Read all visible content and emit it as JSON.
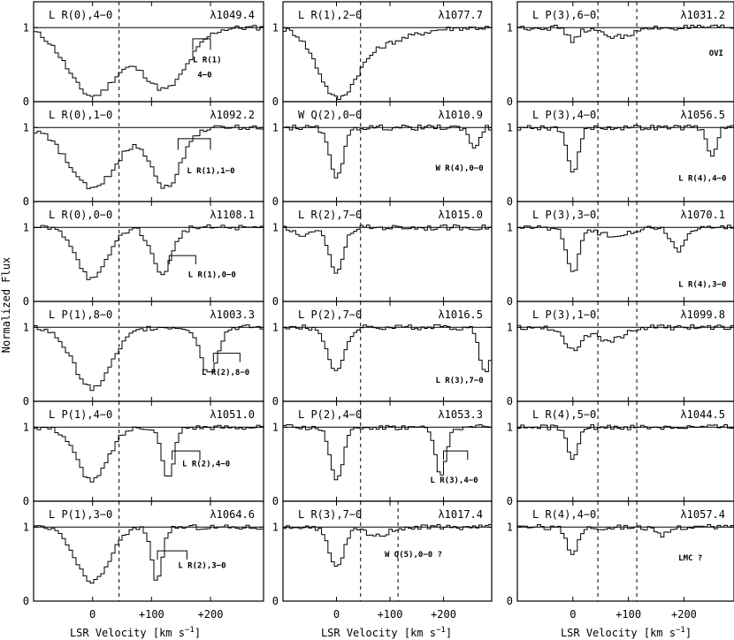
{
  "figure": {
    "ylabel": "Normalized Flux",
    "xlabel_main": "LSR Velocity [km s",
    "xlabel_sup": "−1",
    "xlabel_end": "]",
    "xticks": [
      {
        "v": 0,
        "label": "0"
      },
      {
        "v": 100,
        "label": "+100"
      },
      {
        "v": 200,
        "label": "+200"
      }
    ],
    "yticks": [
      {
        "v": 0,
        "label": "0"
      },
      {
        "v": 1,
        "label": "1"
      }
    ]
  },
  "chart_data": {
    "type": "line",
    "xlim": [
      -100,
      290
    ],
    "ylim": [
      0,
      1.35
    ],
    "continuum": 1.0,
    "reference_velocity": [
      45,
      115
    ],
    "grid": false,
    "panels": [
      {
        "column": 1,
        "row": 1,
        "transition": "L  R(0),4−0",
        "wavelength": "λ1049.4",
        "components": [
          {
            "v": 0,
            "depth": 0.92,
            "width": 42
          },
          {
            "v": 123,
            "depth": 0.82,
            "width": 38
          }
        ],
        "ref_lines": [
          45
        ],
        "annotations": [
          {
            "text": "L  R(1)",
            "v": 170,
            "y": 0.53
          },
          {
            "text": "4−0",
            "v": 178,
            "y": 0.33
          }
        ],
        "marker": {
          "v1": 170,
          "v2": 200,
          "y": 0.85,
          "drop": 0.15
        }
      },
      {
        "column": 2,
        "row": 1,
        "transition": "L  R(1),2−0",
        "wavelength": "λ1077.7",
        "components": [
          {
            "v": 0,
            "depth": 0.84,
            "width": 35
          },
          {
            "v": 70,
            "depth": 0.22,
            "width": 60
          }
        ],
        "ref_lines": [
          45
        ],
        "annotations": [],
        "marker": null
      },
      {
        "column": 3,
        "row": 1,
        "transition": "L  P(3),6−0",
        "wavelength": "λ1031.2",
        "components": [
          {
            "v": 0,
            "depth": 0.18,
            "width": 9
          },
          {
            "v": 80,
            "depth": 0.12,
            "width": 30
          }
        ],
        "ref_lines": [
          45,
          115
        ],
        "annotations": [
          {
            "text": "OVI",
            "v": 245,
            "y": 0.62
          }
        ],
        "marker": null
      },
      {
        "column": 1,
        "row": 2,
        "transition": "L  R(0),1−0",
        "wavelength": "λ1092.2",
        "components": [
          {
            "v": 0,
            "depth": 0.82,
            "width": 40
          },
          {
            "v": 125,
            "depth": 0.8,
            "width": 25
          }
        ],
        "ref_lines": [
          45
        ],
        "annotations": [
          {
            "text": "L  R(1),1−0",
            "v": 160,
            "y": 0.38
          }
        ],
        "marker": {
          "v1": 145,
          "v2": 200,
          "y": 0.85,
          "drop": 0.15
        }
      },
      {
        "column": 2,
        "row": 2,
        "transition": "W  Q(2),0−0",
        "wavelength": "λ1010.9",
        "components": [
          {
            "v": 0,
            "depth": 0.65,
            "width": 13
          },
          {
            "v": 258,
            "depth": 0.3,
            "width": 8
          }
        ],
        "ref_lines": [
          45
        ],
        "annotations": [
          {
            "text": "W  R(4),0−0",
            "v": 185,
            "y": 0.42
          }
        ],
        "marker": null
      },
      {
        "column": 3,
        "row": 2,
        "transition": "L  P(3),4−0",
        "wavelength": "λ1056.5",
        "components": [
          {
            "v": 0,
            "depth": 0.6,
            "width": 10
          },
          {
            "v": 250,
            "depth": 0.4,
            "width": 8
          }
        ],
        "ref_lines": [
          45,
          115
        ],
        "annotations": [
          {
            "text": "L  R(4),4−0",
            "v": 190,
            "y": 0.28
          }
        ],
        "marker": null
      },
      {
        "column": 1,
        "row": 3,
        "transition": "L  R(0),0−0",
        "wavelength": "λ1108.1",
        "components": [
          {
            "v": 0,
            "depth": 0.7,
            "width": 25
          },
          {
            "v": 118,
            "depth": 0.62,
            "width": 17
          }
        ],
        "ref_lines": [
          45
        ],
        "annotations": [
          {
            "text": "L  R(1),0−0",
            "v": 162,
            "y": 0.33
          }
        ],
        "marker": {
          "v1": 130,
          "v2": 175,
          "y": 0.62,
          "drop": 0.12
        }
      },
      {
        "column": 2,
        "row": 3,
        "transition": "L  R(2),7−0",
        "wavelength": "λ1015.0",
        "components": [
          {
            "v": 0,
            "depth": 0.6,
            "width": 13
          },
          {
            "v": -60,
            "depth": 0.1,
            "width": 20
          }
        ],
        "ref_lines": [
          45
        ],
        "annotations": [],
        "marker": null
      },
      {
        "column": 3,
        "row": 3,
        "transition": "L  P(3),3−0",
        "wavelength": "λ1070.1",
        "components": [
          {
            "v": 0,
            "depth": 0.6,
            "width": 11
          },
          {
            "v": 70,
            "depth": 0.1,
            "width": 30
          },
          {
            "v": 190,
            "depth": 0.32,
            "width": 12
          }
        ],
        "ref_lines": [
          45,
          115
        ],
        "annotations": [
          {
            "text": "L  R(4),3−0",
            "v": 190,
            "y": 0.2
          }
        ],
        "marker": null
      },
      {
        "column": 1,
        "row": 4,
        "transition": "L  P(1),8−0",
        "wavelength": "λ1003.3",
        "components": [
          {
            "v": 0,
            "depth": 0.82,
            "width": 32
          },
          {
            "v": 198,
            "depth": 0.62,
            "width": 14
          }
        ],
        "ref_lines": [
          45
        ],
        "annotations": [
          {
            "text": "L  R(2),8−0",
            "v": 185,
            "y": 0.36
          }
        ],
        "marker": {
          "v1": 205,
          "v2": 250,
          "y": 0.65,
          "drop": 0.12
        }
      },
      {
        "column": 2,
        "row": 4,
        "transition": "L  P(2),7−0",
        "wavelength": "λ1016.5",
        "components": [
          {
            "v": 0,
            "depth": 0.58,
            "width": 16
          },
          {
            "v": 278,
            "depth": 0.62,
            "width": 10
          }
        ],
        "ref_lines": [
          45
        ],
        "annotations": [
          {
            "text": "L  R(3),7−0",
            "v": 185,
            "y": 0.25
          }
        ],
        "marker": null
      },
      {
        "column": 3,
        "row": 4,
        "transition": "L  P(3),1−0",
        "wavelength": "λ1099.8",
        "components": [
          {
            "v": 0,
            "depth": 0.3,
            "width": 14
          },
          {
            "v": 65,
            "depth": 0.18,
            "width": 25
          }
        ],
        "ref_lines": [
          45,
          115
        ],
        "annotations": [],
        "marker": null
      },
      {
        "column": 1,
        "row": 5,
        "transition": "L  P(1),4−0",
        "wavelength": "λ1051.0",
        "components": [
          {
            "v": 0,
            "depth": 0.72,
            "width": 26
          },
          {
            "v": 128,
            "depth": 0.7,
            "width": 10
          }
        ],
        "ref_lines": [
          45
        ],
        "annotations": [
          {
            "text": "L  R(2),4−0",
            "v": 152,
            "y": 0.47
          }
        ],
        "marker": {
          "v1": 135,
          "v2": 182,
          "y": 0.68,
          "drop": 0.12
        }
      },
      {
        "column": 2,
        "row": 5,
        "transition": "L  P(2),4−0",
        "wavelength": "λ1053.3",
        "components": [
          {
            "v": 0,
            "depth": 0.72,
            "width": 12
          },
          {
            "v": 195,
            "depth": 0.65,
            "width": 10
          }
        ],
        "ref_lines": [
          45
        ],
        "annotations": [
          {
            "text": "L  R(3),4−0",
            "v": 175,
            "y": 0.25
          }
        ],
        "marker": {
          "v1": 200,
          "v2": 245,
          "y": 0.68,
          "drop": 0.12
        }
      },
      {
        "column": 3,
        "row": 5,
        "transition": "L  R(4),5−0",
        "wavelength": "λ1044.5",
        "components": [
          {
            "v": 0,
            "depth": 0.4,
            "width": 10
          }
        ],
        "ref_lines": [
          45,
          115
        ],
        "annotations": [],
        "marker": null
      },
      {
        "column": 1,
        "row": 6,
        "transition": "L  P(1),3−0",
        "wavelength": "λ1064.6",
        "components": [
          {
            "v": 0,
            "depth": 0.75,
            "width": 28
          },
          {
            "v": 110,
            "depth": 0.72,
            "width": 9
          }
        ],
        "ref_lines": [
          45
        ],
        "annotations": [
          {
            "text": "L  R(2),3−0",
            "v": 145,
            "y": 0.45
          }
        ],
        "marker": {
          "v1": 110,
          "v2": 160,
          "y": 0.68,
          "drop": 0.12
        }
      },
      {
        "column": 2,
        "row": 6,
        "transition": "L  R(3),7−0",
        "wavelength": "λ1017.4",
        "components": [
          {
            "v": 0,
            "depth": 0.55,
            "width": 14
          },
          {
            "v": 75,
            "depth": 0.12,
            "width": 20
          }
        ],
        "ref_lines": [
          45,
          115
        ],
        "annotations": [
          {
            "text": "W  Q(5),0−0  ?",
            "v": 90,
            "y": 0.6
          }
        ],
        "marker": null
      },
      {
        "column": 3,
        "row": 6,
        "transition": "L  R(4),4−0",
        "wavelength": "λ1057.4",
        "components": [
          {
            "v": 0,
            "depth": 0.35,
            "width": 10
          },
          {
            "v": 160,
            "depth": 0.12,
            "width": 12
          }
        ],
        "ref_lines": [
          45,
          115
        ],
        "annotations": [
          {
            "text": "LMC ?",
            "v": 190,
            "y": 0.55
          }
        ],
        "marker": null
      }
    ]
  }
}
